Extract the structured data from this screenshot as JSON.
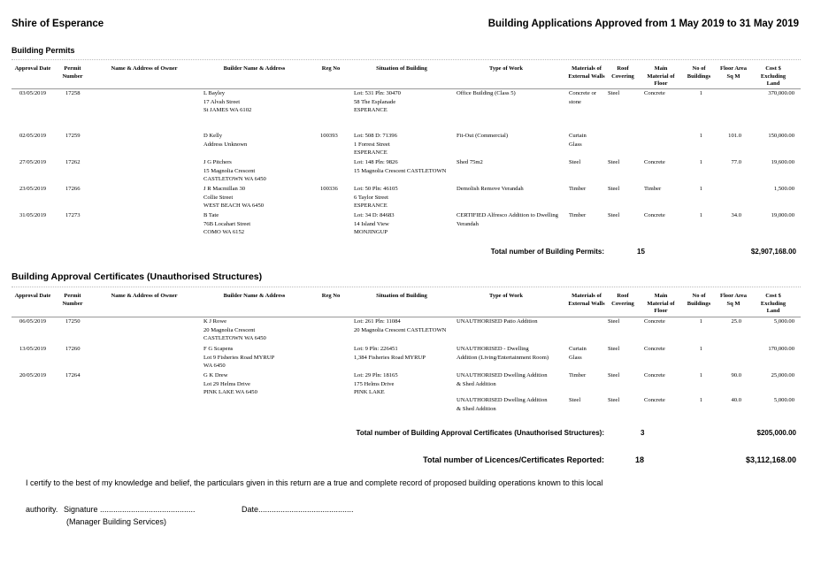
{
  "header": {
    "org": "Shire of Esperance",
    "report_title": "Building Applications Approved from 1 May 2019 to 31 May 2019"
  },
  "columns": {
    "approval_date": "Approval Date",
    "permit_number": "Permit Number",
    "owner": "Name & Address of Owner",
    "builder": "Builder Name & Address",
    "reg_no": "Reg No",
    "situation": "Situation of Building",
    "type_of_work": "Type of Work",
    "materials_walls": "Materials of External Walls",
    "roof": "Roof Covering",
    "main_floor": "Main Material of Floor",
    "no_buildings": "No of Buildings",
    "floor_area": "Floor Area Sq M",
    "cost": "Cost $ Excluding Land"
  },
  "permits": {
    "section_title": "Building Permits",
    "rows": [
      {
        "date": "03/05/2019",
        "permit": "17258",
        "builder": [
          "L Bayley",
          "17 Alvah Street",
          "St JAMES WA 6102"
        ],
        "reg": "",
        "situation": [
          "Lot: 531 Pln: 30470",
          "58 The Esplanade",
          "ESPERANCE"
        ],
        "work": [
          "Office Building (Class 5)"
        ],
        "walls": [
          "Concrete or",
          "stone"
        ],
        "roof": "Steel",
        "floor": "Concrete",
        "nb": "1",
        "area": "",
        "cost": "370,000.00"
      },
      {
        "date": "02/05/2019",
        "permit": "17259",
        "builder": [
          "D Kelly",
          "Address Unknown"
        ],
        "reg": "100393",
        "situation": [
          "Lot: 508 D: 71396",
          "1 Forrest Street",
          "ESPERANCE"
        ],
        "work": [
          "Fit-Out (Commercial)"
        ],
        "walls": [
          "Curtain",
          "Glass"
        ],
        "roof": "",
        "floor": "",
        "nb": "1",
        "area": "101.0",
        "cost": "150,000.00"
      },
      {
        "date": "27/05/2019",
        "permit": "17262",
        "builder": [
          "J G Pitchers",
          "15 Magnolia Crescent",
          "CASTLETOWN WA 6450"
        ],
        "reg": "",
        "situation": [
          "Lot: 148 Pln: 9826",
          "15 Magnolia Crescent CASTLETOWN"
        ],
        "work": [
          "Shed 75m2"
        ],
        "walls": [
          "Steel"
        ],
        "roof": "Steel",
        "floor": "Concrete",
        "nb": "1",
        "area": "77.0",
        "cost": "19,600.00"
      },
      {
        "date": "23/05/2019",
        "permit": "17266",
        "builder": [
          "J R Macmillan 30",
          "Collie Street",
          "WEST BEACH WA 6450"
        ],
        "reg": "100336",
        "situation": [
          "Lot: 50 Pln: 46105",
          "6 Taylor Street",
          "ESPERANCE"
        ],
        "work": [
          "Demolish Remove Verandah"
        ],
        "walls": [
          "Timber"
        ],
        "roof": "Steel",
        "floor": "Timber",
        "nb": "1",
        "area": "",
        "cost": "1,500.00"
      },
      {
        "date": "31/05/2019",
        "permit": "17273",
        "builder": [
          "B Tate",
          "76B Locahart Street",
          "COMO WA 6152"
        ],
        "reg": "",
        "situation": [
          "Lot: 34 D: 84683",
          "14 Island View",
          "MONJINGUP"
        ],
        "work": [
          "CERTIFIED Alfresco Addition to Dwelling",
          "Verandah"
        ],
        "walls": [
          "Timber"
        ],
        "roof": "Steel",
        "floor": "Concrete",
        "nb": "1",
        "area": "34.0",
        "cost": "19,000.00"
      }
    ],
    "total_label": "Total number of Building Permits:",
    "total_count": "15",
    "total_cost": "$2,907,168.00"
  },
  "certificates": {
    "section_title": "Building Approval Certificates (Unauthorised Structures)",
    "rows": [
      {
        "date": "06/05/2019",
        "permit": "17250",
        "builder": [
          "K J Rowe",
          "20 Magnolia Crescent",
          "CASTLETOWN WA 6450"
        ],
        "reg": "",
        "situation": [
          "Lot: 261 Pln: 11084",
          "20 Magnolia Crescent CASTLETOWN"
        ],
        "work": [
          "UNAUTHORISED Patio Addition"
        ],
        "walls": [],
        "roof": "Steel",
        "floor": "Concrete",
        "nb": "1",
        "area": "25.0",
        "cost": "5,000.00"
      },
      {
        "date": "13/05/2019",
        "permit": "17260",
        "builder": [
          "F G Scapens",
          "Lot 9 Fisheries Road MYRUP",
          "WA 6450"
        ],
        "reg": "",
        "situation": [
          "Lot: 9 Pln: 226451",
          "1,384 Fisheries Road MYRUP"
        ],
        "work": [
          "UNAUTHORISED - Dwelling",
          "Addition (Living/Entertainment Room)"
        ],
        "walls": [
          "Curtain",
          "Glass"
        ],
        "roof": "Steel",
        "floor": "Concrete",
        "nb": "1",
        "area": "",
        "cost": "170,000.00"
      },
      {
        "date": "20/05/2019",
        "permit": "17264",
        "builder": [
          "G K Drew",
          "Lot 29 Helms Drive",
          "PINK LAKE WA 6450"
        ],
        "reg": "",
        "situation": [
          "Lot: 29 Pln: 18165",
          "175 Helms Drive",
          "PINK LAKE"
        ],
        "work": [
          "UNAUTHORISED Dwelling Addition",
          "& Shed Addition"
        ],
        "walls": [
          "Timber"
        ],
        "roof": "Steel",
        "floor": "Concrete",
        "nb": "1",
        "area": "90.0",
        "cost": "25,000.00"
      },
      {
        "date": "",
        "permit": "",
        "builder": [],
        "reg": "",
        "situation": [],
        "work": [
          "UNAUTHORISED Dwelling Addition",
          "& Shed Addition"
        ],
        "walls": [
          "Steel"
        ],
        "roof": "Steel",
        "floor": "Concrete",
        "nb": "1",
        "area": "40.0",
        "cost": "5,000.00"
      }
    ],
    "total_label": "Total number of Building Approval Certificates (Unauthorised Structures):",
    "total_count": "3",
    "total_cost": "$205,000.00"
  },
  "grand_total": {
    "label": "Total number of Licences/Certificates Reported:",
    "count": "18",
    "cost": "$3,112,168.00"
  },
  "footer": {
    "certify": "I certify to the best of my knowledge and belief, the particulars given in this return are a true and complete record of proposed building operations known to this local",
    "authority": "authority.",
    "signature": "Signature ...........................................",
    "date": "Date...........................................",
    "role": "(Manager Building Services)"
  }
}
